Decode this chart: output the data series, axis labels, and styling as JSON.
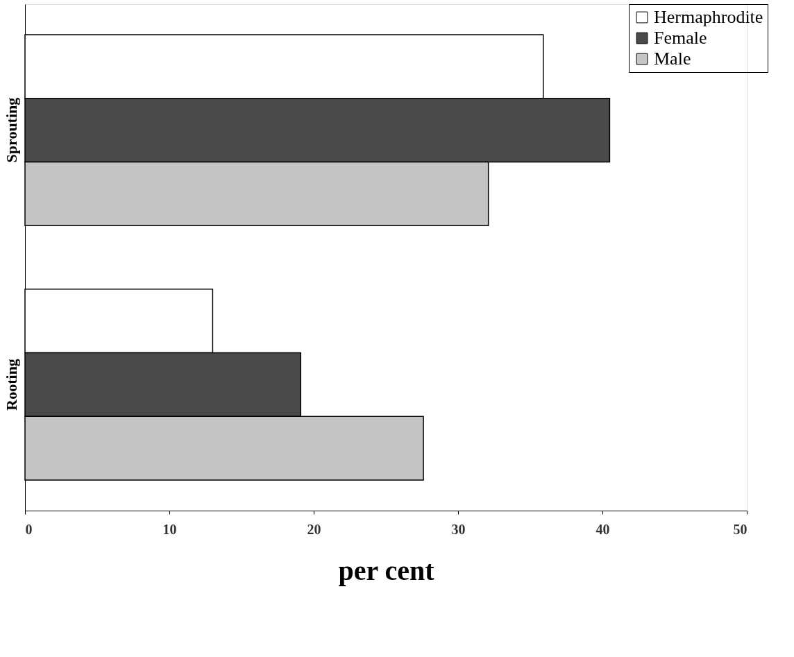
{
  "chart_data": {
    "type": "bar",
    "orientation": "horizontal",
    "xlabel": "per cent",
    "categories": [
      "Sprouting",
      "Rooting"
    ],
    "series": [
      {
        "name": "Hermaphrodite",
        "color": "#ffffff",
        "values": [
          35.9,
          13.0
        ]
      },
      {
        "name": "Female",
        "color": "#4a4a4a",
        "values": [
          40.5,
          19.1
        ]
      },
      {
        "name": "Male",
        "color": "#c4c4c4",
        "values": [
          32.1,
          27.6
        ]
      }
    ],
    "xlim": [
      0,
      50
    ],
    "xticks": [
      0,
      10,
      20,
      30,
      40,
      50
    ],
    "grid": false,
    "legend": "right"
  }
}
